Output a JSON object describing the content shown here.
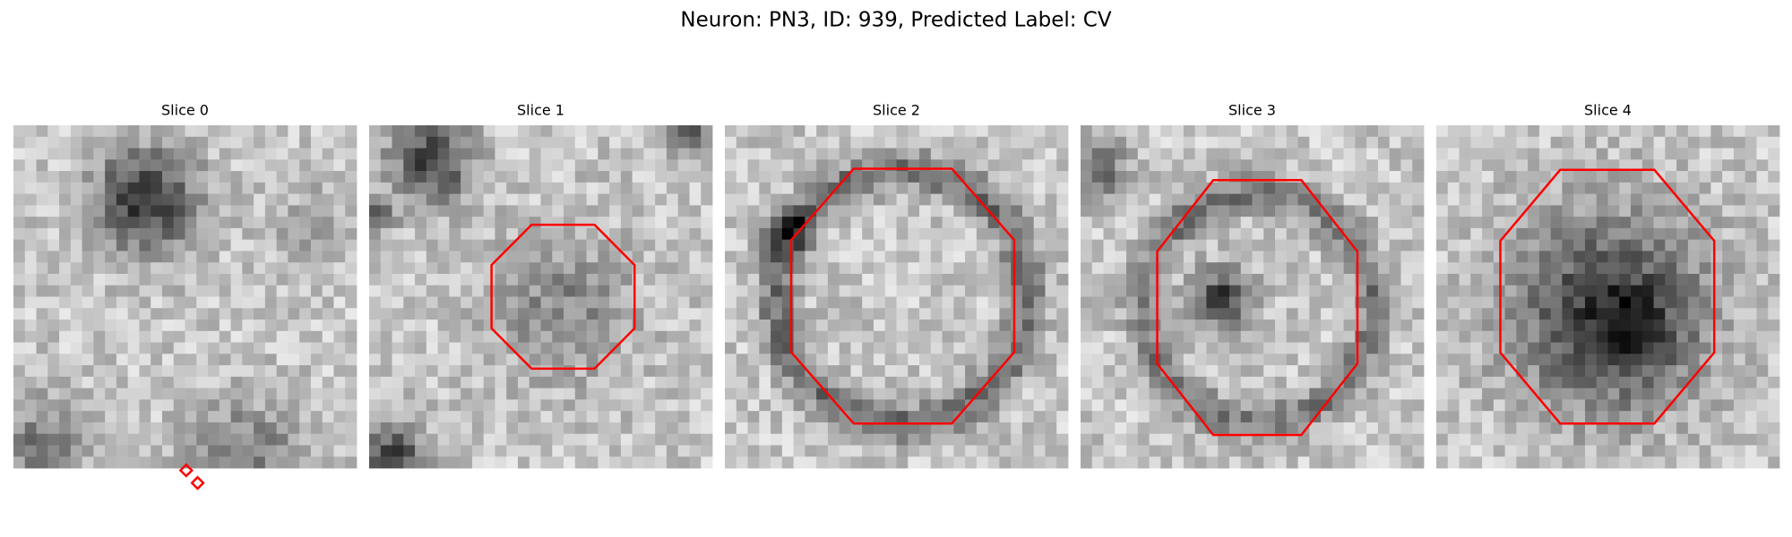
{
  "title": "Neuron: PN3, ID: 939, Predicted Label: CV",
  "panels": [
    {
      "title": "Slice 0"
    },
    {
      "title": "Slice 1"
    },
    {
      "title": "Slice 2"
    },
    {
      "title": "Slice 3"
    },
    {
      "title": "Slice 4"
    }
  ]
}
